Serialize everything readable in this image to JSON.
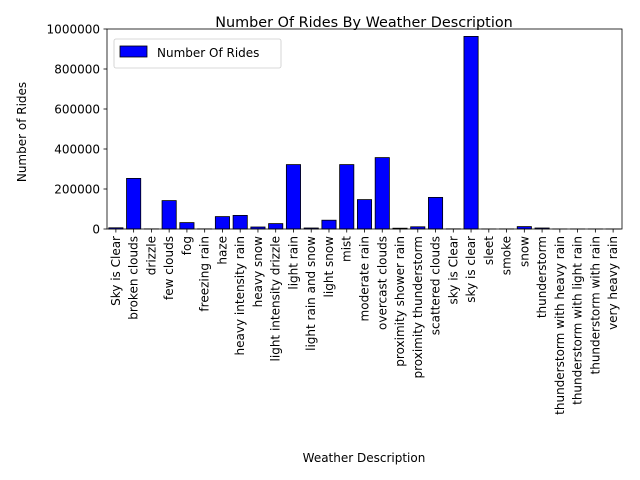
{
  "chart_data": {
    "type": "bar",
    "title": "Number Of Rides By Weather Description",
    "xlabel": "Weather Description",
    "ylabel": "Number of Rides",
    "ylim": [
      0,
      1000000
    ],
    "yticks": [
      "0",
      "200000",
      "400000",
      "600000",
      "800000",
      "1000000"
    ],
    "grid": false,
    "legend_position": "top-left",
    "categories": [
      "Sky is Clear",
      "broken clouds",
      "drizzle",
      "few clouds",
      "fog",
      "freezing rain",
      "haze",
      "heavy intensity rain",
      "heavy snow",
      "light intensity drizzle",
      "light rain",
      "light rain and snow",
      "light snow",
      "mist",
      "moderate rain",
      "overcast clouds",
      "proximity shower rain",
      "proximity thunderstorm",
      "scattered clouds",
      "sky is Clear",
      "sky is clear",
      "sleet",
      "smoke",
      "snow",
      "thunderstorm",
      "thunderstorm with heavy rain",
      "thunderstorm with light rain",
      "thunderstorm with rain",
      "very heavy rain"
    ],
    "series": [
      {
        "name": "Number Of Rides",
        "color": "#0000ff",
        "values": [
          6000,
          253000,
          700,
          142000,
          32000,
          700,
          62000,
          68000,
          10000,
          27000,
          322000,
          5000,
          44000,
          322000,
          147000,
          357000,
          4000,
          11000,
          158000,
          800,
          963000,
          300,
          600,
          12000,
          5000,
          300,
          300,
          300,
          300
        ]
      }
    ]
  }
}
